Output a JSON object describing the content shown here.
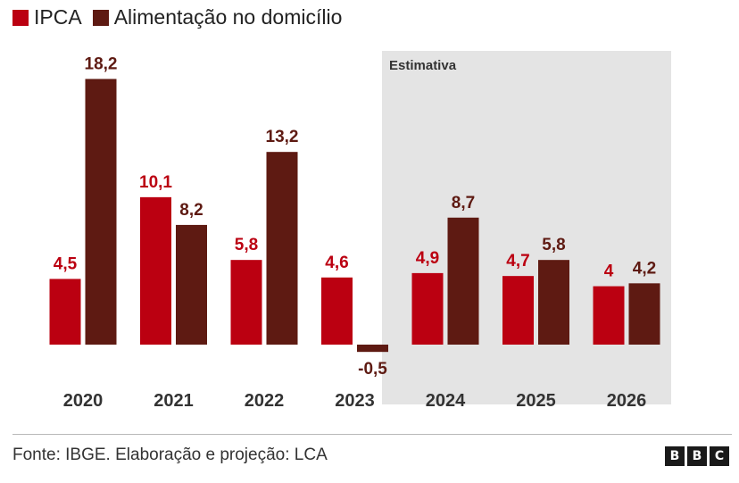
{
  "legend": {
    "items": [
      {
        "label": "IPCA",
        "color": "#bb0011"
      },
      {
        "label": "Alimentação no domicílio",
        "color": "#5e1a12"
      }
    ]
  },
  "source": "Fonte: IBGE. Elaboração e projeção: LCA",
  "logo": {
    "letters": [
      "B",
      "B",
      "C"
    ]
  },
  "chart_data": {
    "type": "bar",
    "categories": [
      "2020",
      "2021",
      "2022",
      "2023",
      "2024",
      "2025",
      "2026"
    ],
    "series": [
      {
        "name": "IPCA",
        "color": "#bb0011",
        "values": [
          4.5,
          10.1,
          5.8,
          4.6,
          4.9,
          4.7,
          4
        ],
        "labels": [
          "4,5",
          "10,1",
          "5,8",
          "4,6",
          "4,9",
          "4,7",
          "4"
        ]
      },
      {
        "name": "Alimentação no domicílio",
        "color": "#5e1a12",
        "values": [
          18.2,
          8.2,
          13.2,
          -0.5,
          8.7,
          5.8,
          4.2
        ],
        "labels": [
          "18,2",
          "8,2",
          "13,2",
          "-0,5",
          "8,7",
          "5,8",
          "4,2"
        ]
      }
    ],
    "highlight": {
      "label": "Estimativa",
      "from": "2024",
      "to": "2026",
      "color": "#e4e4e4"
    },
    "gridlines": false
  }
}
